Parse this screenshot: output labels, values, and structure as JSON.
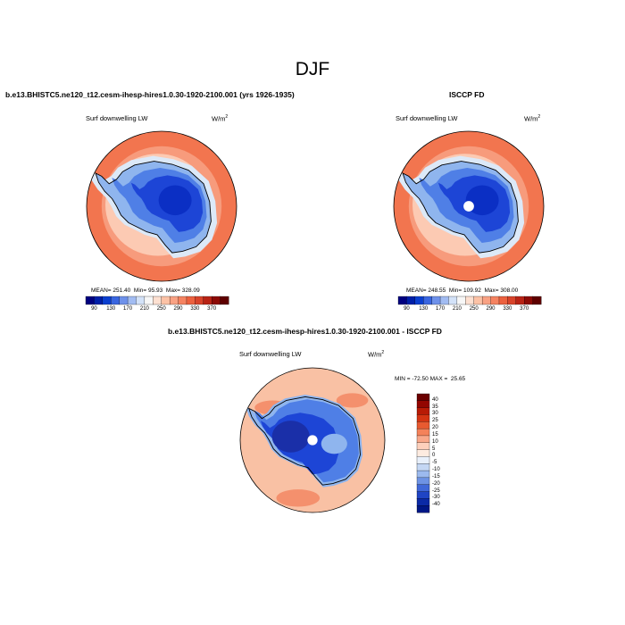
{
  "page": {
    "title": "DJF"
  },
  "colors": {
    "ocean_outer": "#f2754f",
    "ocean_mid": "#f79b7c",
    "ocean_inner": "#fccab3",
    "ice_edge": "#dce9f8",
    "land_light": "#8fb5ee",
    "land_mid": "#4f7fe6",
    "land_deep": "#1d45d6",
    "land_deepest": "#0b2fc4",
    "diff_bg": "#f9c1a4",
    "diff_warm": "#f4906d",
    "diff_deep_blue": "#1a2fa8",
    "coast": "#000000"
  },
  "chart_data": [
    {
      "type": "heatmap",
      "projection": "south-polar-stereographic",
      "title": "b.e13.BHISTC5.ne120_t12.cesm-ihesp-hires1.0.30-1920-2100.001 (yrs 1926-1935)",
      "variable_label": "Surf downwelling LW",
      "units_base": "W/m",
      "units_exp": "2",
      "stats": {
        "mean_label": "MEAN=",
        "mean": "251.40",
        "min_label": "Min=",
        "min": "95.93",
        "max_label": "Max=",
        "max": "328.09"
      },
      "colorbar": {
        "orientation": "horizontal",
        "ticks": [
          "90",
          "130",
          "170",
          "210",
          "250",
          "290",
          "330",
          "370"
        ],
        "colors": [
          "#00007f",
          "#001fa8",
          "#0b3fcf",
          "#3a66e0",
          "#6e91ea",
          "#a2bcf2",
          "#d3e2f8",
          "#f7f7f7",
          "#fde0d1",
          "#fcc2a6",
          "#f9a284",
          "#f58361",
          "#ec613f",
          "#d8432a",
          "#b82315",
          "#8c0a05",
          "#5e0000"
        ]
      }
    },
    {
      "type": "heatmap",
      "projection": "south-polar-stereographic",
      "title": "ISCCP FD",
      "variable_label": "Surf downwelling LW",
      "units_base": "W/m",
      "units_exp": "2",
      "stats": {
        "mean_label": "MEAN=",
        "mean": "248.55",
        "min_label": "Min=",
        "min": "109.92",
        "max_label": "Max=",
        "max": "308.00"
      },
      "colorbar": {
        "orientation": "horizontal",
        "ticks": [
          "90",
          "130",
          "170",
          "210",
          "250",
          "290",
          "330",
          "370"
        ],
        "colors": [
          "#00007f",
          "#001fa8",
          "#0b3fcf",
          "#3a66e0",
          "#6e91ea",
          "#a2bcf2",
          "#d3e2f8",
          "#f7f7f7",
          "#fde0d1",
          "#fcc2a6",
          "#f9a284",
          "#f58361",
          "#ec613f",
          "#d8432a",
          "#b82315",
          "#8c0a05",
          "#5e0000"
        ]
      }
    },
    {
      "type": "heatmap",
      "projection": "south-polar-stereographic",
      "title": "b.e13.BHISTC5.ne120_t12.cesm-ihesp-hires1.0.30-1920-2100.001 - ISCCP FD",
      "variable_label": "Surf downwelling LW",
      "units_base": "W/m",
      "units_exp": "2",
      "stats": {
        "min_label": "MIN =",
        "min": "-72.50",
        "max_label": "MAX =",
        "max": "25.65"
      },
      "colorbar": {
        "orientation": "vertical",
        "ticks": [
          "40",
          "35",
          "30",
          "25",
          "20",
          "15",
          "10",
          "5",
          "0",
          "-5",
          "-10",
          "-15",
          "-20",
          "-25",
          "-30",
          "-40"
        ],
        "colors": [
          "#6b0000",
          "#930600",
          "#b81b05",
          "#d43412",
          "#e85a30",
          "#f4825a",
          "#f9a88a",
          "#fdd0bc",
          "#fdebe0",
          "#e8f0fb",
          "#c4d7f4",
          "#9cbaee",
          "#6e93e4",
          "#4068d8",
          "#1f44c4",
          "#0b2aa6",
          "#001785"
        ]
      }
    }
  ]
}
